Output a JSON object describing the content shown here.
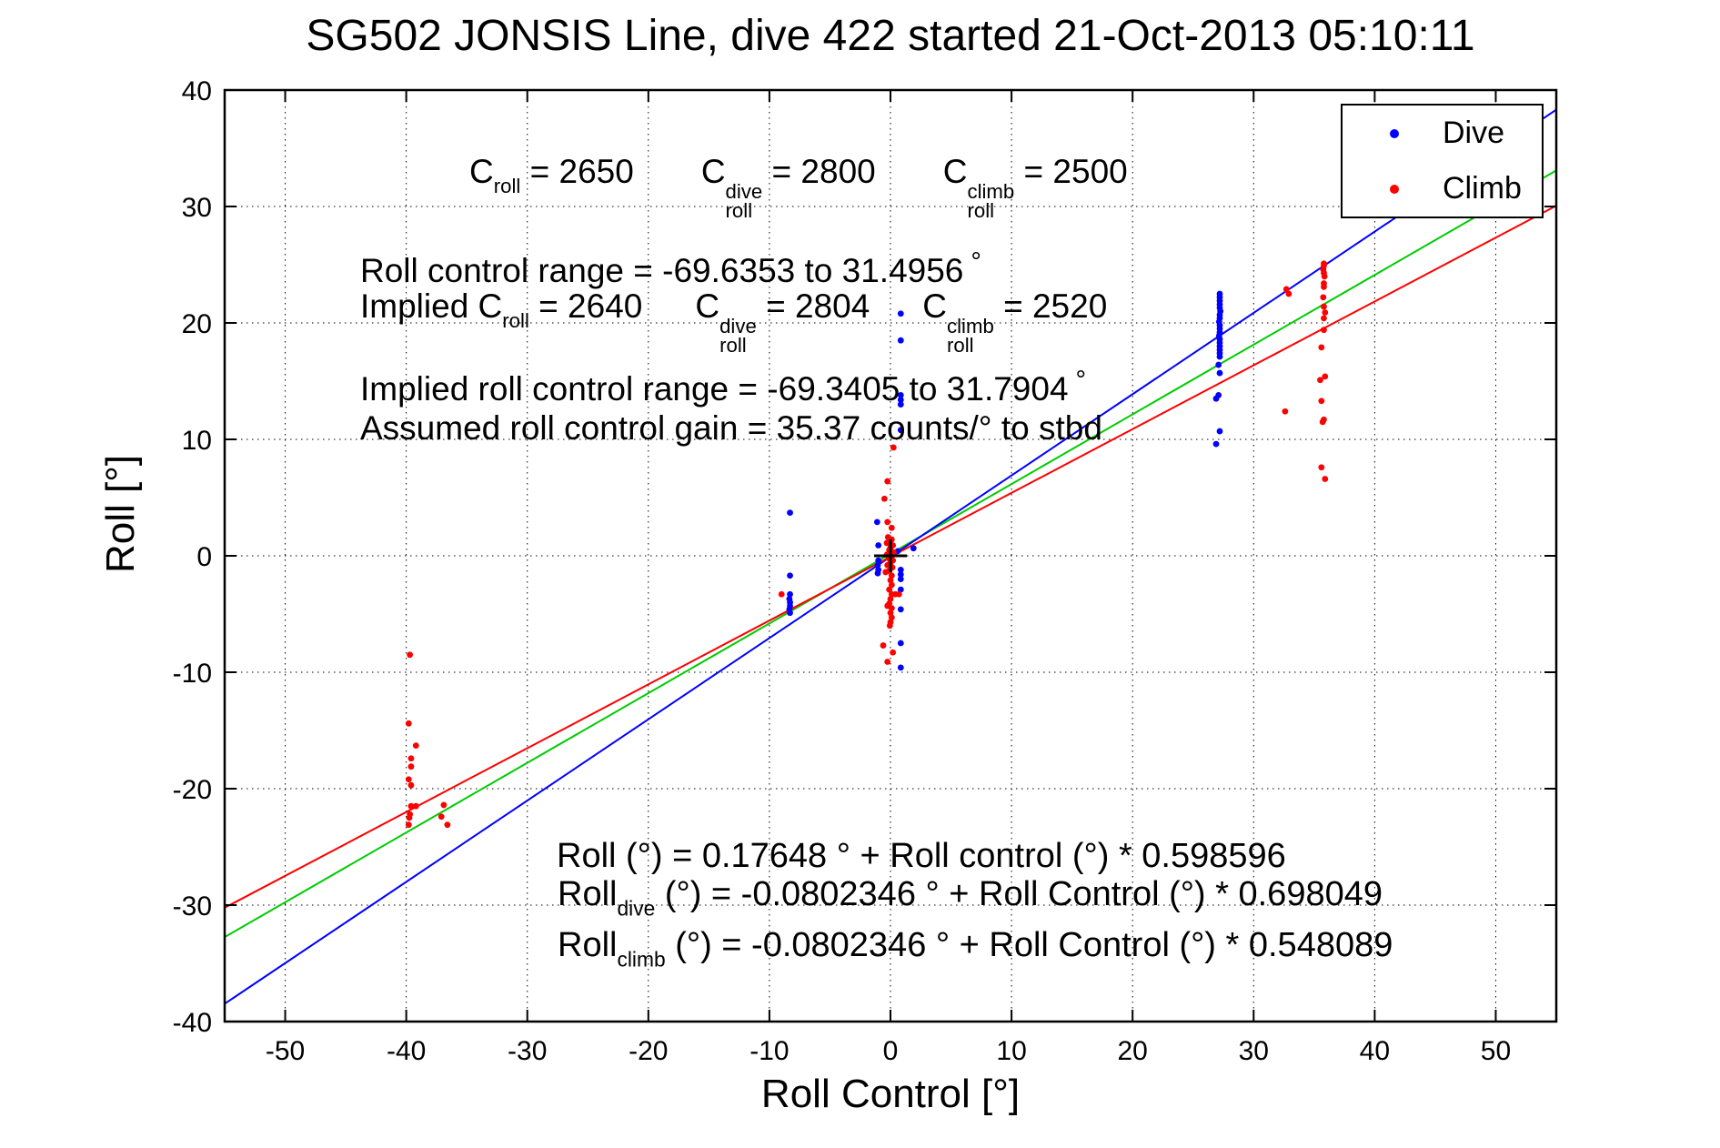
{
  "title": "SG502 JONSIS Line, dive 422 started 21-Oct-2013 05:10:11",
  "axes": {
    "x": {
      "label": "Roll Control [°]"
    },
    "y": {
      "label": "Roll [°]"
    }
  },
  "legend": {
    "items": [
      {
        "label": "Dive",
        "color": "#0000ff"
      },
      {
        "label": "Climb",
        "color": "#ff0000"
      }
    ]
  },
  "annotations": {
    "c_line": {
      "c1": "C",
      "sub1": "roll",
      "v1": " = 2650",
      "c2": "C",
      "sup2": "dive",
      "sub2": "roll",
      "v2": " = 2800",
      "c3": "C",
      "sup3": "climb",
      "sub3": "roll",
      "v3": " = 2500"
    },
    "roll_range": {
      "text": "Roll control range = -69.6353 to 31.4956",
      "deg": "°"
    },
    "implied_c_line": {
      "pre": "Implied C",
      "sub1": "roll",
      "v1": " = 2640",
      "c2": "C",
      "sup2": "dive",
      "sub2": "roll",
      "v2": " = 2804",
      "c3": "C",
      "sup3": "climb",
      "sub3": "roll",
      "v3": " = 2520"
    },
    "implied_range": {
      "text": "Implied roll control range = -69.3405 to 31.7904",
      "deg": "°"
    },
    "gain": {
      "text": "Assumed roll control gain = 35.37 counts/° to stbd"
    },
    "eq_all": {
      "text": "Roll (°) = 0.17648 ° + Roll control (°) * 0.598596"
    },
    "eq_dive": {
      "name": "Roll",
      "sub": "dive",
      "rest": " (°) = -0.0802346 ° + Roll Control (°) * 0.698049"
    },
    "eq_climb": {
      "name": "Roll",
      "sub": "climb",
      "rest": " (°) = -0.0802346 ° + Roll Control (°) * 0.548089"
    }
  },
  "chart_data": {
    "type": "scatter",
    "title": "SG502 JONSIS Line, dive 422 started 21-Oct-2013 05:10:11",
    "xlabel": "Roll Control [°]",
    "ylabel": "Roll [°]",
    "xlim": [
      -55,
      55
    ],
    "ylim": [
      -40,
      40
    ],
    "xticks": [
      -50,
      -40,
      -30,
      -20,
      -10,
      0,
      10,
      20,
      30,
      40,
      50
    ],
    "yticks": [
      -40,
      -30,
      -20,
      -10,
      0,
      10,
      20,
      30,
      40
    ],
    "grid": true,
    "legend_position": "northeast",
    "series": [
      {
        "name": "Dive",
        "color": "#0000ff",
        "marker": "dot",
        "points": [
          [
            -8.3,
            3.7
          ],
          [
            -8.3,
            -1.7
          ],
          [
            -8.3,
            -3.3
          ],
          [
            -8.35,
            -3.7
          ],
          [
            -8.3,
            -4.0
          ],
          [
            -8.3,
            -4.3
          ],
          [
            -8.35,
            -4.6
          ],
          [
            -8.3,
            -4.9
          ],
          [
            -1.1,
            2.9
          ],
          [
            -1.0,
            0.9
          ],
          [
            -1.0,
            -0.4
          ],
          [
            -1.05,
            -0.8
          ],
          [
            -1.0,
            -1.2
          ],
          [
            -1.05,
            -1.5
          ],
          [
            0.6,
            0.4
          ],
          [
            1.9,
            0.65
          ],
          [
            0.85,
            20.8
          ],
          [
            0.85,
            18.5
          ],
          [
            0.85,
            13.8
          ],
          [
            0.85,
            13.4
          ],
          [
            0.85,
            13.0
          ],
          [
            0.85,
            10.8
          ],
          [
            0.85,
            -1.2
          ],
          [
            0.85,
            -1.6
          ],
          [
            0.85,
            -2.0
          ],
          [
            0.85,
            -2.9
          ],
          [
            0.85,
            -4.6
          ],
          [
            0.85,
            -7.5
          ],
          [
            0.85,
            -9.6
          ],
          [
            27.2,
            22.5
          ],
          [
            27.2,
            22.2
          ],
          [
            27.2,
            21.9
          ],
          [
            27.2,
            21.6
          ],
          [
            27.2,
            21.3
          ],
          [
            27.25,
            21.0
          ],
          [
            27.2,
            20.7
          ],
          [
            27.2,
            20.4
          ],
          [
            27.15,
            20.1
          ],
          [
            27.2,
            19.8
          ],
          [
            27.2,
            19.5
          ],
          [
            27.2,
            19.2
          ],
          [
            27.15,
            18.9
          ],
          [
            27.2,
            18.6
          ],
          [
            27.2,
            18.3
          ],
          [
            27.2,
            18.0
          ],
          [
            27.2,
            17.7
          ],
          [
            27.2,
            17.4
          ],
          [
            27.2,
            17.1
          ],
          [
            27.1,
            16.4
          ],
          [
            27.2,
            15.7
          ],
          [
            27.1,
            13.8
          ],
          [
            26.9,
            13.5
          ],
          [
            27.2,
            10.7
          ],
          [
            26.9,
            9.6
          ]
        ]
      },
      {
        "name": "Climb",
        "color": "#ff0000",
        "marker": "dot",
        "points": [
          [
            -39.7,
            -8.5
          ],
          [
            -39.8,
            -14.4
          ],
          [
            -39.2,
            -16.3
          ],
          [
            -39.6,
            -17.4
          ],
          [
            -39.6,
            -18.1
          ],
          [
            -39.8,
            -19.2
          ],
          [
            -39.6,
            -19.7
          ],
          [
            -39.6,
            -21.5
          ],
          [
            -39.2,
            -21.5
          ],
          [
            -39.7,
            -22.2
          ],
          [
            -39.75,
            -22.5
          ],
          [
            -39.8,
            -23.1
          ],
          [
            -36.9,
            -21.4
          ],
          [
            -37.1,
            -22.4
          ],
          [
            -36.6,
            -23.1
          ],
          [
            -9.0,
            -3.3
          ],
          [
            0.25,
            9.3
          ],
          [
            -0.25,
            6.4
          ],
          [
            -0.5,
            4.9
          ],
          [
            -0.25,
            2.9
          ],
          [
            0.1,
            2.4
          ],
          [
            -0.2,
            1.6
          ],
          [
            0.1,
            1.4
          ],
          [
            -0.3,
            1.1
          ],
          [
            0.2,
            0.9
          ],
          [
            0.0,
            0.7
          ],
          [
            -0.1,
            0.5
          ],
          [
            0.25,
            0.3
          ],
          [
            -0.3,
            0.1
          ],
          [
            0.1,
            0.0
          ],
          [
            -0.15,
            -0.2
          ],
          [
            0.2,
            -0.4
          ],
          [
            0.0,
            -0.6
          ],
          [
            -0.25,
            -0.8
          ],
          [
            0.15,
            -1.0
          ],
          [
            -0.1,
            -1.3
          ],
          [
            -0.4,
            -1.4
          ],
          [
            0.1,
            -1.7
          ],
          [
            0.0,
            -2.1
          ],
          [
            0.1,
            -2.5
          ],
          [
            -0.1,
            -2.9
          ],
          [
            0.7,
            -3.3
          ],
          [
            0.1,
            -3.3
          ],
          [
            0.0,
            -3.7
          ],
          [
            0.4,
            -3.3
          ],
          [
            -0.1,
            -4.1
          ],
          [
            -0.25,
            -4.3
          ],
          [
            0.1,
            -4.5
          ],
          [
            0.0,
            -4.9
          ],
          [
            0.1,
            -5.3
          ],
          [
            0.0,
            -5.7
          ],
          [
            -0.05,
            -6.0
          ],
          [
            -0.6,
            -7.7
          ],
          [
            0.2,
            -8.3
          ],
          [
            -0.25,
            -9.1
          ],
          [
            32.6,
            12.4
          ],
          [
            32.7,
            22.9
          ],
          [
            32.9,
            22.5
          ],
          [
            35.8,
            25.1
          ],
          [
            35.8,
            24.9
          ],
          [
            35.75,
            24.6
          ],
          [
            35.8,
            24.3
          ],
          [
            35.85,
            24.0
          ],
          [
            35.8,
            23.4
          ],
          [
            35.8,
            23.1
          ],
          [
            35.75,
            22.2
          ],
          [
            35.8,
            21.4
          ],
          [
            35.9,
            20.9
          ],
          [
            35.8,
            20.4
          ],
          [
            35.8,
            19.4
          ],
          [
            35.6,
            17.9
          ],
          [
            35.9,
            15.4
          ],
          [
            35.5,
            15.1
          ],
          [
            35.6,
            13.3
          ],
          [
            35.8,
            11.7
          ],
          [
            35.7,
            11.5
          ],
          [
            35.6,
            7.6
          ],
          [
            35.9,
            6.6
          ]
        ]
      }
    ],
    "fit_lines": [
      {
        "name": "all",
        "color": "#00cc00",
        "intercept": 0.17648,
        "slope": 0.598596
      },
      {
        "name": "dive",
        "color": "#0000ff",
        "intercept": -0.0802346,
        "slope": 0.698049
      },
      {
        "name": "climb",
        "color": "#ff0000",
        "intercept": -0.0802346,
        "slope": 0.548089
      }
    ],
    "center_marker": {
      "x": 0,
      "y": 0,
      "color": "#000000"
    }
  }
}
